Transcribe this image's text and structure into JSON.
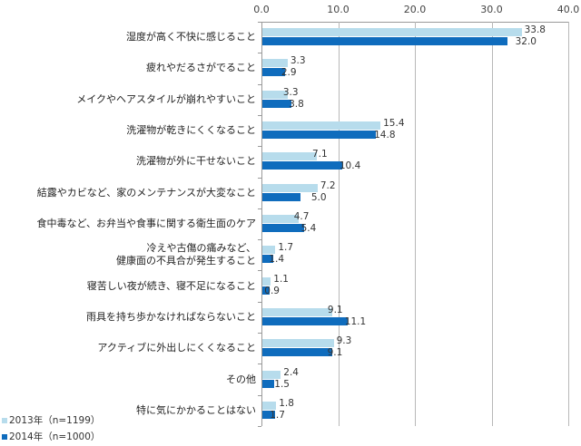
{
  "chart_data": {
    "type": "bar",
    "orientation": "horizontal",
    "title": "",
    "xlabel": "",
    "ylabel": "",
    "xlim": [
      0,
      40
    ],
    "x_ticks": [
      "0.0",
      "10.0",
      "20.0",
      "30.0",
      "40.0"
    ],
    "grid": true,
    "legend_position": "bottom-left",
    "categories": [
      "湿度が高く不快に感じること",
      "疲れやだるさがでること",
      "メイクやヘアスタイルが崩れやすいこと",
      "洗濯物が乾きにくくなること",
      "洗濯物が外に干せないこと",
      "結露やカビなど、家のメンテナンスが大変なこと",
      "食中毒など、お弁当や食事に関する衛生面のケア",
      "冷えや古傷の痛みなど、\n健康面の不具合が発生すること",
      "寝苦しい夜が続き、寝不足になること",
      "雨具を持ち歩かなければならないこと",
      "アクティブに外出しにくくなること",
      "その他",
      "特に気にかかることはない"
    ],
    "series": [
      {
        "name": "2013年（n=1199）",
        "color": "#b7dcec",
        "values": [
          33.8,
          3.3,
          3.3,
          15.4,
          7.1,
          7.2,
          4.7,
          1.7,
          1.1,
          9.1,
          9.3,
          2.4,
          1.8
        ],
        "labels": [
          "33.8",
          "3.3",
          "3.3",
          "15.4",
          "7.1",
          "7.2",
          "4.7",
          "1.7",
          "1.1",
          "9.1",
          "9.3",
          "2.4",
          "1.8"
        ]
      },
      {
        "name": "2014年（n=1000）",
        "color": "#0f6cbd",
        "values": [
          32.0,
          2.9,
          3.8,
          14.8,
          10.4,
          5.0,
          5.4,
          1.4,
          0.9,
          11.1,
          9.1,
          1.5,
          1.7
        ],
        "labels": [
          "32.0",
          "2.9",
          "3.8",
          "14.8",
          "10.4",
          "5.0",
          "5.4",
          "1.4",
          "0.9",
          "11.1",
          "9.1",
          "1.5",
          "1.7"
        ]
      }
    ]
  }
}
